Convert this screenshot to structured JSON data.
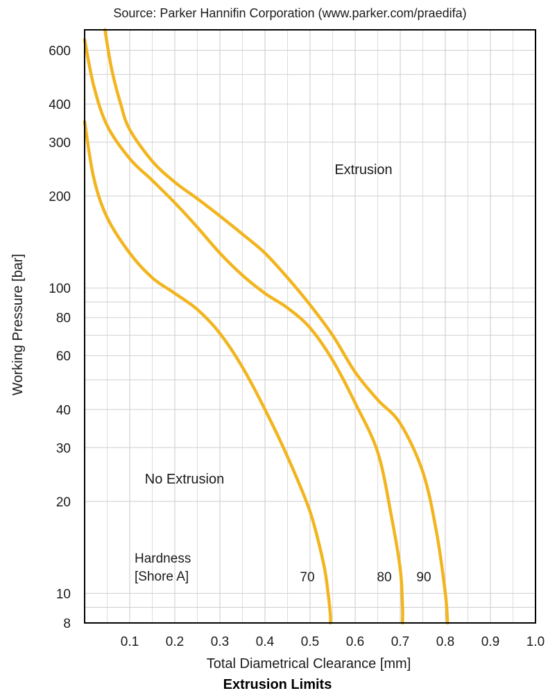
{
  "source_note": "Source: Parker Hannifin Corporation (www.parker.com/praedifa)",
  "chart_data": {
    "type": "line",
    "title": "Extrusion Limits",
    "xlabel": "Total Diametrical Clearance [mm]",
    "ylabel": "Working Pressure [bar]",
    "xlim": [
      0,
      1.0
    ],
    "ylim": [
      8,
      700
    ],
    "yscale": "log",
    "grid": true,
    "x_ticks": [
      "0.1",
      "0.2",
      "0.3",
      "0.4",
      "0.5",
      "0.6",
      "0.7",
      "0.8",
      "0.9",
      "1.0"
    ],
    "y_ticks": [
      "8",
      "10",
      "20",
      "30",
      "40",
      "60",
      "80",
      "100",
      "200",
      "300",
      "400",
      "600"
    ],
    "region_labels": {
      "upper": "Extrusion",
      "lower": "No Extrusion"
    },
    "hardness_label": [
      "Hardness",
      "[Shore A]"
    ],
    "curve_color": "#f2b51f",
    "series": [
      {
        "name": "70",
        "x": [
          0.0,
          0.02,
          0.05,
          0.1,
          0.15,
          0.2,
          0.25,
          0.3,
          0.35,
          0.4,
          0.45,
          0.5,
          0.53,
          0.54,
          0.545,
          0.545
        ],
        "y": [
          350,
          230,
          170,
          130,
          108,
          96,
          85,
          71,
          55,
          40,
          28,
          18.5,
          12.5,
          10,
          8.5,
          8
        ]
      },
      {
        "name": "80",
        "x": [
          0.0,
          0.02,
          0.05,
          0.1,
          0.15,
          0.2,
          0.25,
          0.3,
          0.35,
          0.4,
          0.45,
          0.5,
          0.55,
          0.6,
          0.65,
          0.68,
          0.7,
          0.705,
          0.705
        ],
        "y": [
          650,
          460,
          340,
          265,
          225,
          190,
          158,
          130,
          110,
          96,
          86,
          74,
          58,
          42,
          29,
          18,
          12,
          9,
          8
        ]
      },
      {
        "name": "90",
        "x": [
          0.045,
          0.06,
          0.08,
          0.1,
          0.15,
          0.2,
          0.25,
          0.3,
          0.35,
          0.4,
          0.45,
          0.5,
          0.55,
          0.6,
          0.65,
          0.7,
          0.75,
          0.78,
          0.8,
          0.805
        ],
        "y": [
          700,
          520,
          400,
          330,
          260,
          222,
          196,
          172,
          150,
          130,
          108,
          88,
          70,
          53,
          43,
          36,
          25,
          16,
          10,
          8
        ]
      }
    ]
  }
}
